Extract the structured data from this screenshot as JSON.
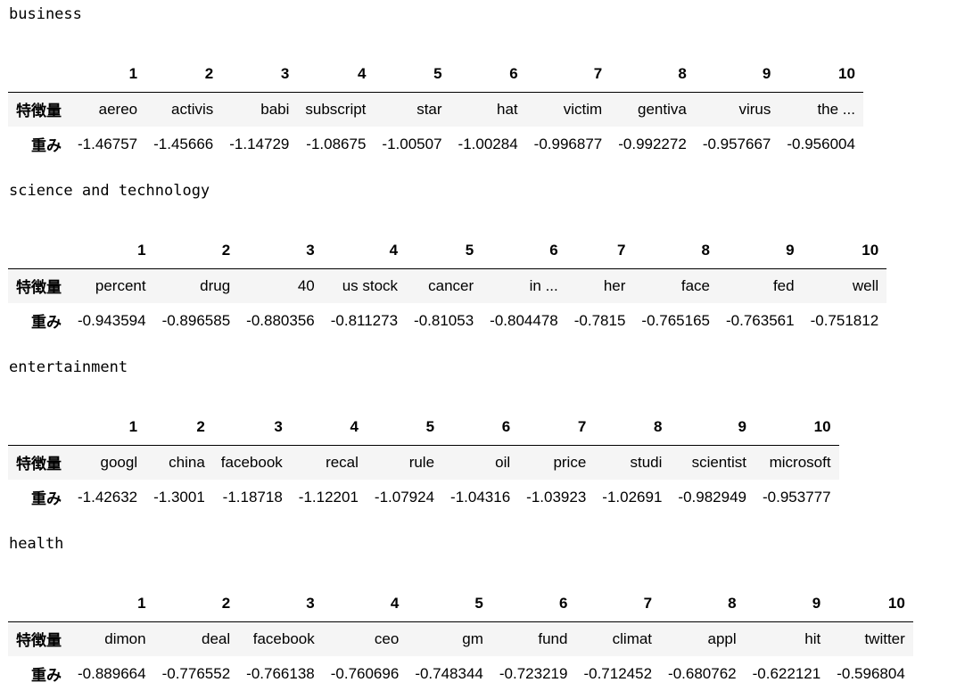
{
  "sections": [
    {
      "title": "business",
      "columns": [
        "1",
        "2",
        "3",
        "4",
        "5",
        "6",
        "7",
        "8",
        "9",
        "10"
      ],
      "row_labels": [
        "特徴量",
        "重み"
      ],
      "features": [
        "aereo",
        "activis",
        "babi",
        "subscript",
        "star",
        "hat",
        "victim",
        "gentiva",
        "virus",
        "the ..."
      ],
      "weights": [
        "-1.46757",
        "-1.45666",
        "-1.14729",
        "-1.08675",
        "-1.00507",
        "-1.00284",
        "-0.996877",
        "-0.992272",
        "-0.957667",
        "-0.956004"
      ]
    },
    {
      "title": "science and technology",
      "columns": [
        "1",
        "2",
        "3",
        "4",
        "5",
        "6",
        "7",
        "8",
        "9",
        "10"
      ],
      "row_labels": [
        "特徴量",
        "重み"
      ],
      "features": [
        "percent",
        "drug",
        "40",
        "us stock",
        "cancer",
        "in ...",
        "her",
        "face",
        "fed",
        "well"
      ],
      "weights": [
        "-0.943594",
        "-0.896585",
        "-0.880356",
        "-0.811273",
        "-0.81053",
        "-0.804478",
        "-0.7815",
        "-0.765165",
        "-0.763561",
        "-0.751812"
      ]
    },
    {
      "title": "entertainment",
      "columns": [
        "1",
        "2",
        "3",
        "4",
        "5",
        "6",
        "7",
        "8",
        "9",
        "10"
      ],
      "row_labels": [
        "特徴量",
        "重み"
      ],
      "features": [
        "googl",
        "china",
        "facebook",
        "recal",
        "rule",
        "oil",
        "price",
        "studi",
        "scientist",
        "microsoft"
      ],
      "weights": [
        "-1.42632",
        "-1.3001",
        "-1.18718",
        "-1.12201",
        "-1.07924",
        "-1.04316",
        "-1.03923",
        "-1.02691",
        "-0.982949",
        "-0.953777"
      ]
    },
    {
      "title": "health",
      "columns": [
        "1",
        "2",
        "3",
        "4",
        "5",
        "6",
        "7",
        "8",
        "9",
        "10"
      ],
      "row_labels": [
        "特徴量",
        "重み"
      ],
      "features": [
        "dimon",
        "deal",
        "facebook",
        "ceo",
        "gm",
        "fund",
        "climat",
        "appl",
        "hit",
        "twitter"
      ],
      "weights": [
        "-0.889664",
        "-0.776552",
        "-0.766138",
        "-0.760696",
        "-0.748344",
        "-0.723219",
        "-0.712452",
        "-0.680762",
        "-0.622121",
        "-0.596804"
      ]
    }
  ]
}
